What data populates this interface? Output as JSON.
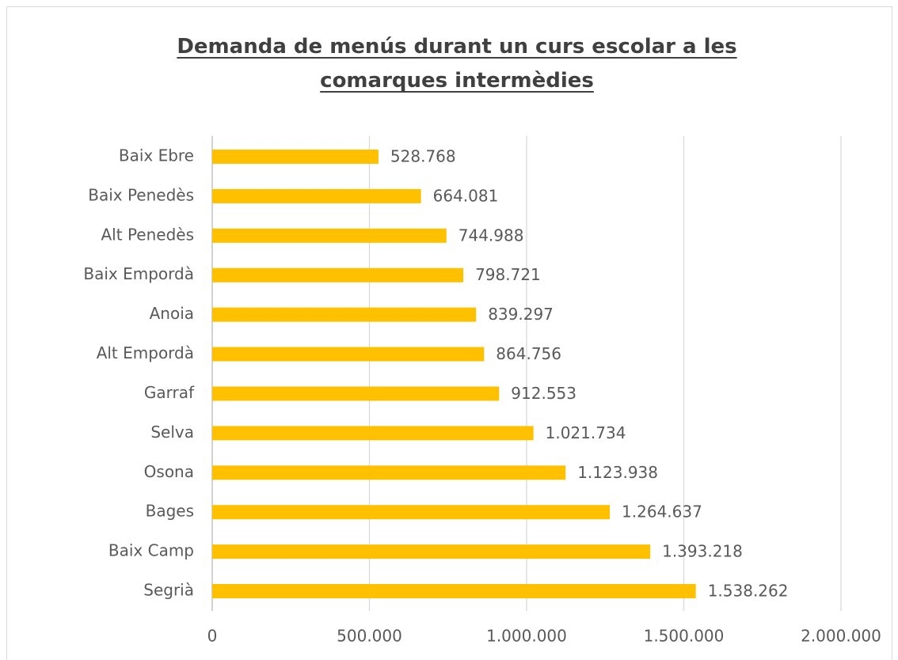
{
  "chart_data": {
    "type": "barh",
    "title": "Demanda de menús durant un curs escolar a les comarques intermèdies",
    "categories": [
      "Baix Ebre",
      "Baix Penedès",
      "Alt Penedès",
      "Baix Empordà",
      "Anoia",
      "Alt Empordà",
      "Garraf",
      "Selva",
      "Osona",
      "Bages",
      "Baix Camp",
      "Segrià"
    ],
    "values": [
      528768,
      664081,
      744988,
      798721,
      839297,
      864756,
      912553,
      1021734,
      1123938,
      1264637,
      1393218,
      1538262
    ],
    "value_labels": [
      "528.768",
      "664.081",
      "744.988",
      "798.721",
      "839.297",
      "864.756",
      "912.553",
      "1.021.734",
      "1.123.938",
      "1.264.637",
      "1.393.218",
      "1.538.262"
    ],
    "color": "#ffc000",
    "xlim": [
      0,
      2000000
    ],
    "xticks": [
      0,
      {
        "value": 500000,
        "label": "500.000"
      },
      {
        "value": 1000000,
        "label": "1.000.000"
      },
      {
        "value": 1500000,
        "label": "1.500.000"
      },
      {
        "value": 2000000,
        "label": "2.000.000"
      }
    ],
    "grid": true
  }
}
